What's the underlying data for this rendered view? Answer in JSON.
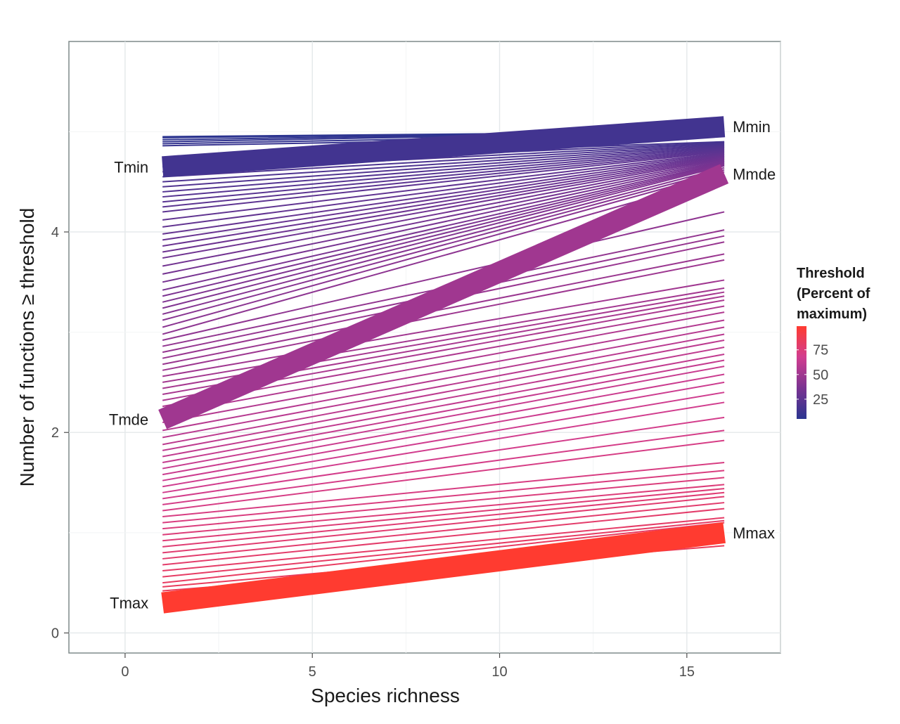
{
  "chart_data": {
    "type": "line",
    "xlabel": "Species richness",
    "ylabel": "Number of  functions ≥ threshold",
    "xlim": [
      -1.5,
      17.5
    ],
    "ylim": [
      -0.2,
      5.9
    ],
    "x_ticks": [
      0,
      5,
      10,
      15
    ],
    "y_ticks": [
      0,
      2,
      4
    ],
    "x_tick_labels": [
      "0",
      "5",
      "10",
      "15"
    ],
    "y_tick_labels": [
      "0",
      "2",
      "4"
    ],
    "grid": true,
    "legend": {
      "position": "right",
      "title_lines": [
        "Threshold",
        "(Percent of",
        "maximum)"
      ],
      "ticks": [
        25,
        50,
        75
      ],
      "tick_labels": [
        "75",
        "50",
        "25"
      ],
      "range": [
        5,
        99
      ],
      "colors": [
        "#2b3590",
        "#7a3391",
        "#d13d8f",
        "#ff3b30"
      ]
    },
    "thin_lines": {
      "x": [
        1,
        16
      ],
      "start_y": [
        4.95,
        4.94,
        4.92,
        4.9,
        4.88,
        4.86,
        4.7,
        4.65,
        4.6,
        4.55,
        4.5,
        4.45,
        4.4,
        4.35,
        4.3,
        4.25,
        4.2,
        4.12,
        4.05,
        3.98,
        3.92,
        3.86,
        3.8,
        3.74,
        3.66,
        3.58,
        3.5,
        3.42,
        3.36,
        3.3,
        3.24,
        3.18,
        3.12,
        3.05,
        2.98,
        2.92,
        2.86,
        2.8,
        2.74,
        2.68,
        2.62,
        2.56,
        2.5,
        2.44,
        2.38,
        2.32,
        2.26,
        2.18,
        2.1,
        2.02,
        1.95,
        1.88,
        1.82,
        1.76,
        1.7,
        1.64,
        1.58,
        1.52,
        1.46,
        1.4,
        1.34,
        1.28,
        1.22,
        1.16,
        1.1,
        1.04,
        0.98,
        0.92,
        0.86,
        0.8,
        0.74,
        0.68,
        0.62,
        0.56,
        0.5,
        0.46,
        0.42
      ],
      "end_y": [
        5.0,
        5.0,
        5.0,
        5.0,
        4.98,
        4.96,
        4.9,
        4.89,
        4.88,
        4.87,
        4.86,
        4.85,
        4.84,
        4.83,
        4.82,
        4.81,
        4.8,
        4.79,
        4.78,
        4.77,
        4.76,
        4.75,
        4.74,
        4.73,
        4.72,
        4.71,
        4.7,
        4.69,
        4.68,
        4.67,
        4.66,
        4.64,
        4.62,
        4.6,
        4.55,
        4.2,
        4.02,
        3.96,
        3.9,
        3.78,
        3.72,
        3.52,
        3.44,
        3.4,
        3.36,
        3.32,
        3.26,
        3.2,
        3.12,
        3.05,
        2.98,
        2.92,
        2.85,
        2.78,
        2.72,
        2.66,
        2.58,
        2.5,
        2.4,
        2.3,
        2.15,
        2.02,
        1.92,
        1.7,
        1.62,
        1.55,
        1.48,
        1.44,
        1.4,
        1.36,
        1.3,
        1.24,
        1.15,
        1.12,
        1.1,
        0.95,
        0.87
      ],
      "threshold": [
        5,
        6,
        7,
        8,
        9,
        10,
        15,
        16,
        17,
        18,
        19,
        20,
        21,
        22,
        23,
        24,
        25,
        26,
        27,
        28,
        29,
        30,
        31,
        32,
        33,
        34,
        35,
        36,
        37,
        38,
        39,
        40,
        41,
        42,
        43,
        44,
        45,
        46,
        47,
        48,
        49,
        50,
        51,
        52,
        53,
        54,
        55,
        56,
        57,
        58,
        59,
        60,
        61,
        62,
        63,
        64,
        65,
        66,
        67,
        68,
        69,
        70,
        71,
        72,
        73,
        74,
        75,
        76,
        77,
        78,
        79,
        80,
        81,
        82,
        83,
        84,
        85
      ]
    },
    "series": [
      {
        "name": "min",
        "start_label": "Tmin",
        "end_label": "Mmin",
        "x": [
          1,
          16
        ],
        "y": [
          4.65,
          5.05
        ],
        "threshold": 14,
        "width": "thick"
      },
      {
        "name": "mde",
        "start_label": "Tmde",
        "end_label": "Mmde",
        "x": [
          1,
          16
        ],
        "y": [
          2.13,
          4.58
        ],
        "threshold": 50,
        "width": "thick"
      },
      {
        "name": "max",
        "start_label": "Tmax",
        "end_label": "Mmax",
        "x": [
          1,
          16
        ],
        "y": [
          0.3,
          1.0
        ],
        "threshold": 99,
        "width": "thick"
      }
    ]
  }
}
